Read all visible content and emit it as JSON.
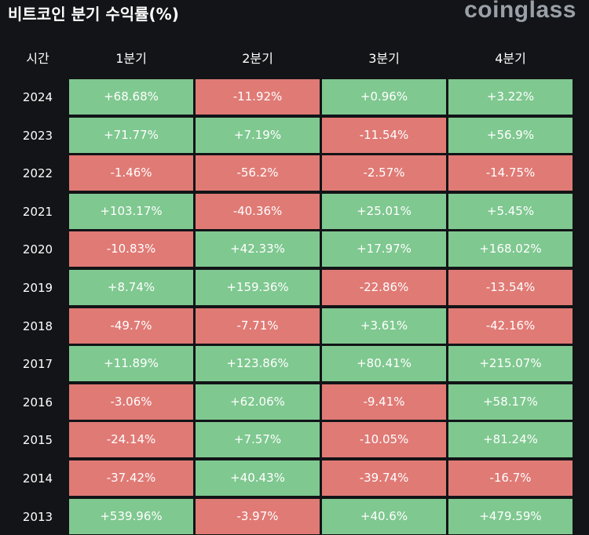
{
  "header": {
    "title": "비트코인 분기 수익률(%)",
    "brand": "coinglass"
  },
  "colors": {
    "positive": "#7fc890",
    "negative": "#e07a75",
    "background": "#121417"
  },
  "chart_data": {
    "type": "table",
    "title": "비트코인 분기 수익률(%)",
    "columns": [
      "시간",
      "1분기",
      "2분기",
      "3분기",
      "4분기"
    ],
    "rows": [
      {
        "year": "2024",
        "values": [
          "+68.68%",
          "-11.92%",
          "+0.96%",
          "+3.22%"
        ]
      },
      {
        "year": "2023",
        "values": [
          "+71.77%",
          "+7.19%",
          "-11.54%",
          "+56.9%"
        ]
      },
      {
        "year": "2022",
        "values": [
          "-1.46%",
          "-56.2%",
          "-2.57%",
          "-14.75%"
        ]
      },
      {
        "year": "2021",
        "values": [
          "+103.17%",
          "-40.36%",
          "+25.01%",
          "+5.45%"
        ]
      },
      {
        "year": "2020",
        "values": [
          "-10.83%",
          "+42.33%",
          "+17.97%",
          "+168.02%"
        ]
      },
      {
        "year": "2019",
        "values": [
          "+8.74%",
          "+159.36%",
          "-22.86%",
          "-13.54%"
        ]
      },
      {
        "year": "2018",
        "values": [
          "-49.7%",
          "-7.71%",
          "+3.61%",
          "-42.16%"
        ]
      },
      {
        "year": "2017",
        "values": [
          "+11.89%",
          "+123.86%",
          "+80.41%",
          "+215.07%"
        ]
      },
      {
        "year": "2016",
        "values": [
          "-3.06%",
          "+62.06%",
          "-9.41%",
          "+58.17%"
        ]
      },
      {
        "year": "2015",
        "values": [
          "-24.14%",
          "+7.57%",
          "-10.05%",
          "+81.24%"
        ]
      },
      {
        "year": "2014",
        "values": [
          "-37.42%",
          "+40.43%",
          "-39.74%",
          "-16.7%"
        ]
      },
      {
        "year": "2013",
        "values": [
          "+539.96%",
          "-3.97%",
          "+40.6%",
          "+479.59%"
        ]
      }
    ]
  }
}
